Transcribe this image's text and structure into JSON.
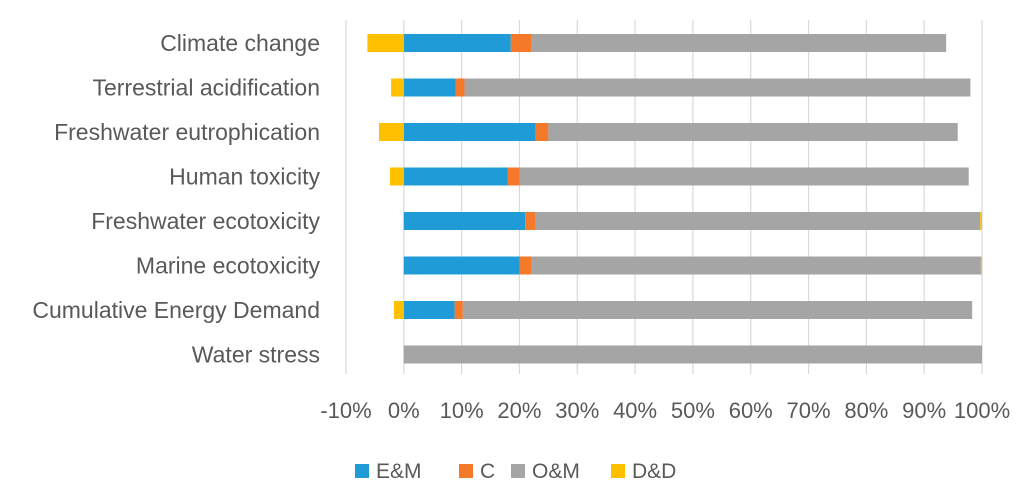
{
  "chart_data": {
    "type": "bar",
    "orientation": "horizontal",
    "stacked": true,
    "title": "",
    "xlabel": "",
    "ylabel": "",
    "xlim": [
      -0.1,
      1.0
    ],
    "grid": true,
    "legend_position": "bottom",
    "categories": [
      "Climate change",
      "Terrestrial acidification",
      "Freshwater eutrophication",
      "Human toxicity",
      "Freshwater ecotoxicity",
      "Marine ecotoxicity",
      "Cumulative Energy Demand",
      "Water stress"
    ],
    "tick_labels": [
      "-10%",
      "0%",
      "10%",
      "20%",
      "30%",
      "40%",
      "50%",
      "60%",
      "70%",
      "80%",
      "90%",
      "100%"
    ],
    "series": [
      {
        "name": "E&M",
        "color": "#1f9bd8",
        "values": [
          0.185,
          0.09,
          0.228,
          0.18,
          0.21,
          0.2,
          0.088,
          0.0
        ]
      },
      {
        "name": "C",
        "color": "#f47a2a",
        "values": [
          0.035,
          0.015,
          0.022,
          0.02,
          0.018,
          0.02,
          0.014,
          0.0
        ]
      },
      {
        "name": "O&M",
        "color": "#a5a5a5",
        "values": [
          0.718,
          0.875,
          0.708,
          0.777,
          0.769,
          0.778,
          0.881,
          1.0
        ]
      },
      {
        "name": "D&D",
        "color": "#ffc000",
        "values": [
          -0.063,
          -0.022,
          -0.043,
          -0.024,
          0.003,
          0.002,
          -0.017,
          0.0
        ]
      }
    ]
  }
}
